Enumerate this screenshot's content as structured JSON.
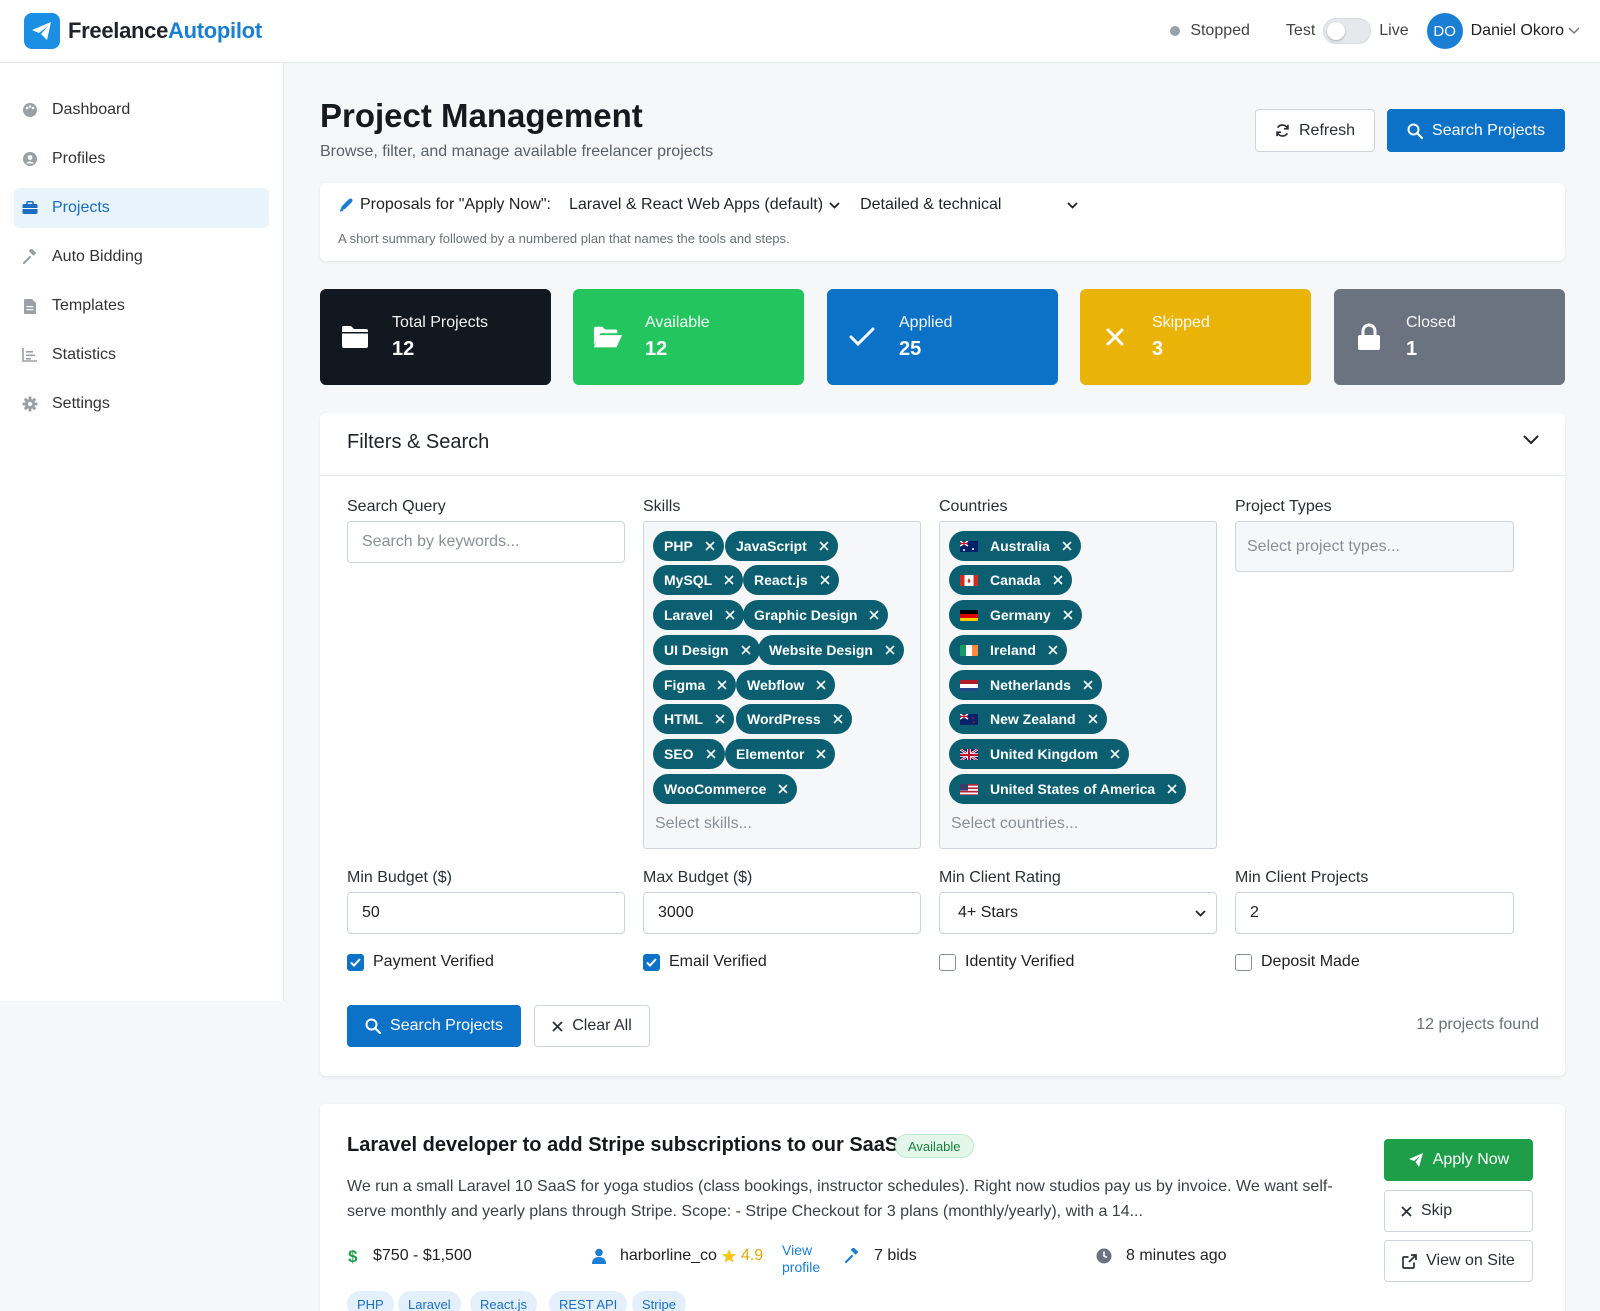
{
  "app": {
    "name_part1": "Freelance",
    "name_part2": "Autopilot",
    "accent": "#0b72c7"
  },
  "header": {
    "status": "Stopped",
    "mode_test": "Test",
    "mode_live": "Live",
    "mode_live_on": false,
    "user_initials": "DO",
    "user_name": "Daniel Okoro"
  },
  "sidebar": {
    "items": [
      {
        "label": "Dashboard",
        "icon": "palette-icon"
      },
      {
        "label": "Profiles",
        "icon": "user-circle-icon"
      },
      {
        "label": "Projects",
        "icon": "briefcase-icon",
        "active": true
      },
      {
        "label": "Auto Bidding",
        "icon": "gavel-icon"
      },
      {
        "label": "Templates",
        "icon": "file-icon"
      },
      {
        "label": "Statistics",
        "icon": "chart-icon"
      },
      {
        "label": "Settings",
        "icon": "gear-icon"
      }
    ]
  },
  "page": {
    "title": "Project Management",
    "subtitle": "Browse, filter, and manage available freelancer projects",
    "refresh_label": "Refresh",
    "search_label": "Search Projects"
  },
  "proposal": {
    "label": "Proposals for \"Apply Now\":",
    "template": "Laravel & React Web Apps (default)",
    "style": "Detailed & technical",
    "hint": "A short summary followed by a numbered plan that names the tools and steps."
  },
  "stats": [
    {
      "label": "Total Projects",
      "value": "12",
      "icon": "folder-icon",
      "color": "#121820"
    },
    {
      "label": "Available",
      "value": "12",
      "icon": "folder-open-icon",
      "color": "#22c55e"
    },
    {
      "label": "Applied",
      "value": "25",
      "icon": "check-icon",
      "color": "#0b72c7"
    },
    {
      "label": "Skipped",
      "value": "3",
      "icon": "x-icon",
      "color": "#eab308"
    },
    {
      "label": "Closed",
      "value": "1",
      "icon": "lock-icon",
      "color": "#6b7280"
    }
  ],
  "filters": {
    "title": "Filters & Search",
    "search_label": "Search Query",
    "search_placeholder": "Search by keywords...",
    "skills_label": "Skills",
    "skills": [
      "PHP",
      "JavaScript",
      "MySQL",
      "React.js",
      "Laravel",
      "Graphic Design",
      "UI Design",
      "Website Design",
      "Figma",
      "Webflow",
      "HTML",
      "WordPress",
      "SEO",
      "Elementor",
      "WooCommerce"
    ],
    "skills_placeholder": "Select skills...",
    "countries_label": "Countries",
    "countries": [
      "Australia",
      "Canada",
      "Germany",
      "Ireland",
      "Netherlands",
      "New Zealand",
      "United Kingdom",
      "United States of America"
    ],
    "countries_placeholder": "Select countries...",
    "types_label": "Project Types",
    "types_placeholder": "Select project types...",
    "min_budget_label": "Min Budget ($)",
    "min_budget": "50",
    "max_budget_label": "Max Budget ($)",
    "max_budget": "3000",
    "rating_label": "Min Client Rating",
    "rating": "4+ Stars",
    "min_projects_label": "Min Client Projects",
    "min_projects": "2",
    "checks": [
      {
        "label": "Payment Verified",
        "checked": true
      },
      {
        "label": "Email Verified",
        "checked": true
      },
      {
        "label": "Identity Verified",
        "checked": false
      },
      {
        "label": "Deposit Made",
        "checked": false
      }
    ],
    "search_button": "Search Projects",
    "clear_button": "Clear All",
    "found_text": "12 projects found"
  },
  "project": {
    "title": "Laravel developer to add Stripe subscriptions to our SaaS",
    "status": "Available",
    "description": "We run a small Laravel 10 SaaS for yoga studios (class bookings, instructor schedules). Right now studios pay us by invoice. We want self-serve monthly and yearly plans through Stripe. Scope: - Stripe Checkout for 3 plans (monthly/yearly), with a 14...",
    "budget": "$750 - $1,500",
    "client": "harborline_co",
    "rating": "4.9",
    "view_profile": "View profile",
    "bids": "7 bids",
    "posted": "8 minutes ago",
    "apply_label": "Apply Now",
    "skip_label": "Skip",
    "site_label": "View on Site",
    "tags": [
      "PHP",
      "Laravel",
      "React.js",
      "REST API",
      "Stripe"
    ]
  }
}
